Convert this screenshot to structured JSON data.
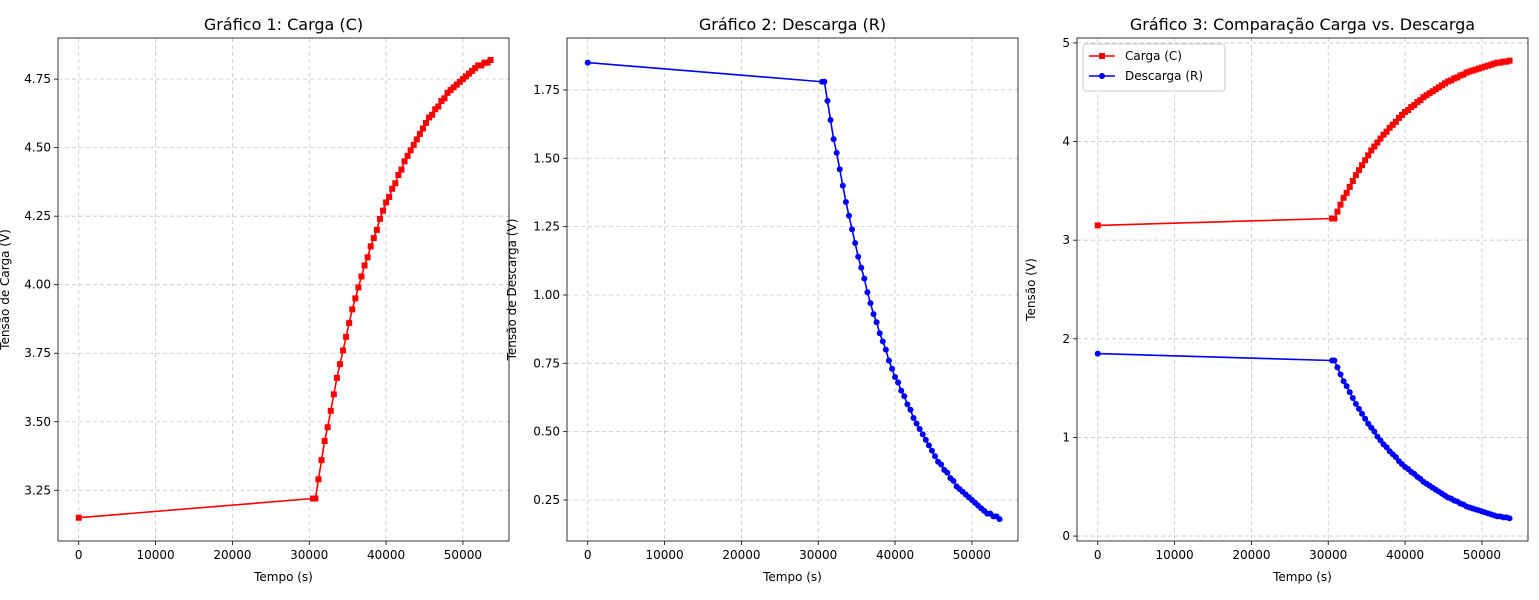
{
  "chart_data": [
    {
      "type": "line",
      "title": "Gráfico 1: Carga (C)",
      "xlabel": "Tempo (s)",
      "ylabel": "Tensão de Carga (V)",
      "xlim": [
        -2700,
        56000
      ],
      "ylim": [
        3.065,
        4.9
      ],
      "xticks": [
        0,
        10000,
        20000,
        30000,
        40000,
        50000
      ],
      "yticks": [
        3.25,
        3.5,
        3.75,
        4.0,
        4.25,
        4.5,
        4.75
      ],
      "xtick_labels": [
        "0",
        "10000",
        "20000",
        "30000",
        "40000",
        "50000"
      ],
      "ytick_labels": [
        "3.25",
        "3.50",
        "3.75",
        "4.00",
        "4.25",
        "4.50",
        "4.75"
      ],
      "grid": true,
      "series": [
        {
          "name": "Carga (C)",
          "color": "#ff0000",
          "marker": "square",
          "x": [
            0,
            30500,
            30800,
            31200,
            31600,
            32000,
            32400,
            32800,
            33200,
            33600,
            34000,
            34400,
            34800,
            35200,
            35600,
            36000,
            36400,
            36800,
            37200,
            37600,
            38000,
            38400,
            38800,
            39200,
            39600,
            40000,
            40400,
            40800,
            41200,
            41600,
            42000,
            42400,
            42800,
            43200,
            43600,
            44000,
            44400,
            44800,
            45200,
            45600,
            46000,
            46400,
            46800,
            47200,
            47600,
            48000,
            48400,
            48800,
            49200,
            49600,
            50000,
            50400,
            50800,
            51200,
            51600,
            52000,
            52400,
            52800,
            53200,
            53600
          ],
          "y": [
            3.15,
            3.22,
            3.22,
            3.29,
            3.36,
            3.43,
            3.48,
            3.54,
            3.6,
            3.66,
            3.71,
            3.76,
            3.81,
            3.86,
            3.91,
            3.95,
            3.99,
            4.03,
            4.07,
            4.1,
            4.14,
            4.17,
            4.2,
            4.24,
            4.27,
            4.3,
            4.32,
            4.35,
            4.37,
            4.4,
            4.42,
            4.45,
            4.47,
            4.49,
            4.51,
            4.53,
            4.55,
            4.57,
            4.59,
            4.61,
            4.62,
            4.64,
            4.65,
            4.67,
            4.68,
            4.7,
            4.71,
            4.72,
            4.73,
            4.74,
            4.75,
            4.76,
            4.77,
            4.78,
            4.79,
            4.8,
            4.8,
            4.81,
            4.81,
            4.82
          ]
        }
      ]
    },
    {
      "type": "line",
      "title": "Gráfico 2: Descarga (R)",
      "xlabel": "Tempo (s)",
      "ylabel": "Tensão de Descarga (V)",
      "xlim": [
        -2700,
        56000
      ],
      "ylim": [
        0.1,
        1.94
      ],
      "xticks": [
        0,
        10000,
        20000,
        30000,
        40000,
        50000
      ],
      "yticks": [
        0.25,
        0.5,
        0.75,
        1.0,
        1.25,
        1.5,
        1.75
      ],
      "xtick_labels": [
        "0",
        "10000",
        "20000",
        "30000",
        "40000",
        "50000"
      ],
      "ytick_labels": [
        "0.25",
        "0.50",
        "0.75",
        "1.00",
        "1.25",
        "1.50",
        "1.75"
      ],
      "grid": true,
      "series": [
        {
          "name": "Descarga (R)",
          "color": "#0000ff",
          "marker": "circle",
          "x": [
            0,
            30500,
            30800,
            31200,
            31600,
            32000,
            32400,
            32800,
            33200,
            33600,
            34000,
            34400,
            34800,
            35200,
            35600,
            36000,
            36400,
            36800,
            37200,
            37600,
            38000,
            38400,
            38800,
            39200,
            39600,
            40000,
            40400,
            40800,
            41200,
            41600,
            42000,
            42400,
            42800,
            43200,
            43600,
            44000,
            44400,
            44800,
            45200,
            45600,
            46000,
            46400,
            46800,
            47200,
            47600,
            48000,
            48400,
            48800,
            49200,
            49600,
            50000,
            50400,
            50800,
            51200,
            51600,
            52000,
            52400,
            52800,
            53200,
            53600
          ],
          "y": [
            1.85,
            1.78,
            1.78,
            1.71,
            1.64,
            1.57,
            1.52,
            1.46,
            1.4,
            1.34,
            1.29,
            1.24,
            1.19,
            1.14,
            1.1,
            1.06,
            1.01,
            0.97,
            0.93,
            0.9,
            0.86,
            0.83,
            0.8,
            0.76,
            0.73,
            0.7,
            0.68,
            0.65,
            0.63,
            0.6,
            0.58,
            0.55,
            0.53,
            0.51,
            0.49,
            0.47,
            0.45,
            0.43,
            0.41,
            0.39,
            0.38,
            0.36,
            0.35,
            0.33,
            0.32,
            0.3,
            0.29,
            0.28,
            0.27,
            0.26,
            0.25,
            0.24,
            0.23,
            0.22,
            0.21,
            0.2,
            0.2,
            0.19,
            0.19,
            0.18
          ]
        }
      ]
    },
    {
      "type": "line",
      "title": "Gráfico 3: Comparação Carga vs. Descarga",
      "xlabel": "Tempo (s)",
      "ylabel": "Tensão (V)",
      "xlim": [
        -2700,
        56000
      ],
      "ylim": [
        -0.05,
        5.05
      ],
      "xticks": [
        0,
        10000,
        20000,
        30000,
        40000,
        50000
      ],
      "yticks": [
        0,
        1,
        2,
        3,
        4,
        5
      ],
      "xtick_labels": [
        "0",
        "10000",
        "20000",
        "30000",
        "40000",
        "50000"
      ],
      "ytick_labels": [
        "0",
        "1",
        "2",
        "3",
        "4",
        "5"
      ],
      "grid": true,
      "legend": "top-left",
      "series": [
        {
          "name": "Carga (C)",
          "color": "#ff0000",
          "marker": "square",
          "x": [
            0,
            30500,
            30800,
            31200,
            31600,
            32000,
            32400,
            32800,
            33200,
            33600,
            34000,
            34400,
            34800,
            35200,
            35600,
            36000,
            36400,
            36800,
            37200,
            37600,
            38000,
            38400,
            38800,
            39200,
            39600,
            40000,
            40400,
            40800,
            41200,
            41600,
            42000,
            42400,
            42800,
            43200,
            43600,
            44000,
            44400,
            44800,
            45200,
            45600,
            46000,
            46400,
            46800,
            47200,
            47600,
            48000,
            48400,
            48800,
            49200,
            49600,
            50000,
            50400,
            50800,
            51200,
            51600,
            52000,
            52400,
            52800,
            53200,
            53600
          ],
          "y": [
            3.15,
            3.22,
            3.22,
            3.29,
            3.36,
            3.43,
            3.48,
            3.54,
            3.6,
            3.66,
            3.71,
            3.76,
            3.81,
            3.86,
            3.91,
            3.95,
            3.99,
            4.03,
            4.07,
            4.1,
            4.14,
            4.17,
            4.2,
            4.24,
            4.27,
            4.3,
            4.32,
            4.35,
            4.37,
            4.4,
            4.42,
            4.45,
            4.47,
            4.49,
            4.51,
            4.53,
            4.55,
            4.57,
            4.59,
            4.61,
            4.62,
            4.64,
            4.65,
            4.67,
            4.68,
            4.7,
            4.71,
            4.72,
            4.73,
            4.74,
            4.75,
            4.76,
            4.77,
            4.78,
            4.79,
            4.8,
            4.8,
            4.81,
            4.81,
            4.82
          ]
        },
        {
          "name": "Descarga (R)",
          "color": "#0000ff",
          "marker": "circle",
          "x": [
            0,
            30500,
            30800,
            31200,
            31600,
            32000,
            32400,
            32800,
            33200,
            33600,
            34000,
            34400,
            34800,
            35200,
            35600,
            36000,
            36400,
            36800,
            37200,
            37600,
            38000,
            38400,
            38800,
            39200,
            39600,
            40000,
            40400,
            40800,
            41200,
            41600,
            42000,
            42400,
            42800,
            43200,
            43600,
            44000,
            44400,
            44800,
            45200,
            45600,
            46000,
            46400,
            46800,
            47200,
            47600,
            48000,
            48400,
            48800,
            49200,
            49600,
            50000,
            50400,
            50800,
            51200,
            51600,
            52000,
            52400,
            52800,
            53200,
            53600
          ],
          "y": [
            1.85,
            1.78,
            1.78,
            1.71,
            1.64,
            1.57,
            1.52,
            1.46,
            1.4,
            1.34,
            1.29,
            1.24,
            1.19,
            1.14,
            1.1,
            1.06,
            1.01,
            0.97,
            0.93,
            0.9,
            0.86,
            0.83,
            0.8,
            0.76,
            0.73,
            0.7,
            0.68,
            0.65,
            0.63,
            0.6,
            0.58,
            0.55,
            0.53,
            0.51,
            0.49,
            0.47,
            0.45,
            0.43,
            0.41,
            0.39,
            0.38,
            0.36,
            0.35,
            0.33,
            0.32,
            0.3,
            0.29,
            0.28,
            0.27,
            0.26,
            0.25,
            0.24,
            0.23,
            0.22,
            0.21,
            0.2,
            0.2,
            0.19,
            0.19,
            0.18
          ]
        }
      ]
    }
  ]
}
